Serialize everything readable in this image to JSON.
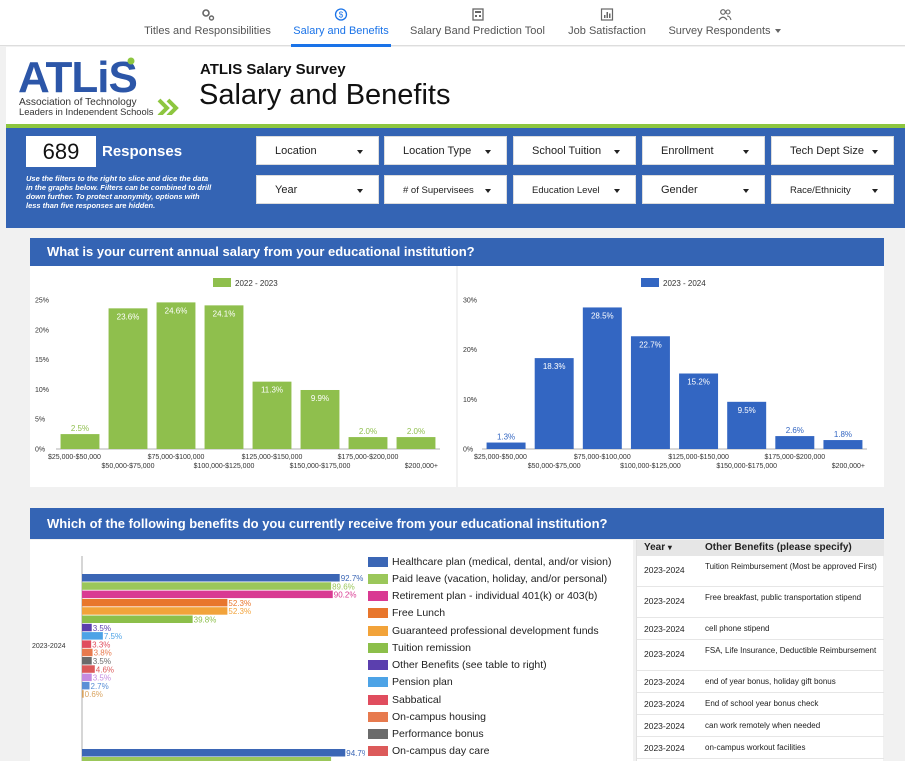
{
  "nav": {
    "items": [
      {
        "label": "Titles and Responsibilities",
        "icon": "gears-icon"
      },
      {
        "label": "Salary and Benefits",
        "icon": "dollar-circle-icon"
      },
      {
        "label": "Salary Band Prediction Tool",
        "icon": "calculator-icon"
      },
      {
        "label": "Job Satisfaction",
        "icon": "bar-chart-icon"
      },
      {
        "label": "Survey Respondents",
        "icon": "people-icon"
      }
    ],
    "active": "Salary and Benefits"
  },
  "header": {
    "logo": {
      "mark": "ATLiS",
      "line1": "Association of Technology",
      "line2": "Leaders in Independent Schools"
    },
    "survey_title": "ATLIS Salary Survey",
    "page_title": "Salary and Benefits"
  },
  "filters": {
    "responses_count": "689",
    "responses_label": "Responses",
    "note": "Use the filters to the right to slice and dice the data in the graphs below. Filters can be combined to drill down further. To protect  anonymity, options with less than five responses are hidden.",
    "dropdowns": [
      "Location",
      "Location Type",
      "School Tuition",
      "Enrollment",
      "Tech Dept Size",
      "Year",
      "# of Supervisees",
      "Education Level",
      "Gender",
      "Race/Ethnicity"
    ]
  },
  "colors": {
    "blue_panel": "#3464b4",
    "green": "#8fbf4d",
    "blue_bars": "#3366c2",
    "nav_active": "#1a73e8"
  },
  "salary_section": {
    "title": "What is your current annual salary from your educational institution?"
  },
  "chart_data": [
    {
      "type": "bar",
      "title": "",
      "legend": "2022 - 2023",
      "categories": [
        "$25,000-$50,000",
        "$50,000-$75,000",
        "$75,000-$100,000",
        "$100,000-$125,000",
        "$125,000-$150,000",
        "$150,000-$175,000",
        "$175,000-$200,000",
        "$200,000+"
      ],
      "values": [
        2.5,
        23.6,
        24.6,
        24.1,
        11.3,
        9.9,
        2.0,
        2.0
      ],
      "value_labels": [
        "2.5%",
        "23.6%",
        "24.6%",
        "24.1%",
        "11.3%",
        "9.9%",
        "2.0%",
        "2.0%"
      ],
      "y_ticks": [
        "0%",
        "5%",
        "10%",
        "15%",
        "20%",
        "25%"
      ],
      "ylim": [
        0,
        25
      ],
      "color": "#8fbf4d"
    },
    {
      "type": "bar",
      "title": "",
      "legend": "2023 - 2024",
      "categories": [
        "$25,000-$50,000",
        "$50,000-$75,000",
        "$75,000-$100,000",
        "$100,000-$125,000",
        "$125,000-$150,000",
        "$150,000-$175,000",
        "$175,000-$200,000",
        "$200,000+"
      ],
      "values": [
        1.3,
        18.3,
        28.5,
        22.7,
        15.2,
        9.5,
        2.6,
        1.8
      ],
      "value_labels": [
        "1.3%",
        "18.3%",
        "28.5%",
        "22.7%",
        "15.2%",
        "9.5%",
        "2.6%",
        "1.8%"
      ],
      "y_ticks": [
        "0%",
        "10%",
        "20%",
        "30%"
      ],
      "ylim": [
        0,
        30
      ],
      "color": "#3366c2"
    },
    {
      "type": "bar",
      "orientation": "horizontal",
      "title": "",
      "category_label": "2023-2024",
      "series": [
        {
          "name": "Healthcare plan (medical, dental, and/or vision)",
          "value": 92.7,
          "label": "92.7%",
          "color": "#3b66b5"
        },
        {
          "name": "Paid leave (vacation, holiday, and/or personal)",
          "value": 89.6,
          "label": "89.6%",
          "color": "#9bc75a"
        },
        {
          "name": "Retirement plan - individual 401(k) or 403(b)",
          "value": 90.2,
          "label": "90.2%",
          "color": "#d93a92"
        },
        {
          "name": "Free Lunch",
          "value": 52.3,
          "label": "52.3%",
          "color": "#e8762c"
        },
        {
          "name": "Guaranteed professional development funds",
          "value": 52.3,
          "label": "52.3%",
          "color": "#f2a33a"
        },
        {
          "name": "Tuition remission",
          "value": 39.8,
          "label": "39.8%",
          "color": "#8cbf4a"
        },
        {
          "name": "Other Benefits (see table to right)",
          "value": 3.5,
          "label": "3.5%",
          "color": "#5b3fae"
        },
        {
          "name": "Pension plan",
          "value": 7.5,
          "label": "7.5%",
          "color": "#4da3e6"
        },
        {
          "name": "Sabbatical",
          "value": 3.3,
          "label": "3.3%",
          "color": "#e04d5e"
        },
        {
          "name": "On-campus housing",
          "value": 3.8,
          "label": "3.8%",
          "color": "#e77a4e"
        },
        {
          "name": "Performance bonus",
          "value": 3.5,
          "label": "3.5%",
          "color": "#6b6b6b"
        },
        {
          "name": "On-campus day care",
          "value": 4.6,
          "label": "4.6%",
          "color": "#dc5a5a"
        },
        {
          "name": "",
          "value": 3.5,
          "label": "3.5%",
          "color": "#c58be0"
        },
        {
          "name": "",
          "value": 2.7,
          "label": "2.7%",
          "color": "#5a8fd6"
        },
        {
          "name": "",
          "value": 0.6,
          "label": "0.6%",
          "color": "#d9a35f"
        }
      ],
      "next_group_first": {
        "value": 94.7,
        "label": "94.7%"
      }
    }
  ],
  "benefits_section": {
    "title": "Which of the following benefits do you currently receive from your educational institution?",
    "legend_items": [
      "Healthcare plan (medical, dental, and/or vision)",
      "Paid leave (vacation, holiday, and/or personal)",
      "Retirement plan - individual 401(k) or 403(b)",
      "Free Lunch",
      "Guaranteed professional development funds",
      "Tuition remission",
      "Other Benefits (see table to right)",
      "Pension plan",
      "Sabbatical",
      "On-campus housing",
      "Performance bonus",
      "On-campus day care"
    ]
  },
  "other_benefits_table": {
    "headers": {
      "year": "Year",
      "sort_indicator": "▾",
      "text": "Other Benefits (please specify)"
    },
    "rows": [
      {
        "year": "2023-2024",
        "text": "Tuition Reimbursement (Most be approved First)"
      },
      {
        "year": "2023-2024",
        "text": "Free breakfast, public transportation stipend"
      },
      {
        "year": "2023-2024",
        "text": "cell phone stipend"
      },
      {
        "year": "2023-2024",
        "text": "FSA, Life Insurance, Deductible Reimbursement"
      },
      {
        "year": "2023-2024",
        "text": "end of year bonus, holiday gift bonus"
      },
      {
        "year": "2023-2024",
        "text": "End of school year bonus check"
      },
      {
        "year": "2023-2024",
        "text": "can work remotely when needed"
      },
      {
        "year": "2023-2024",
        "text": "on-campus workout facilities"
      }
    ]
  }
}
